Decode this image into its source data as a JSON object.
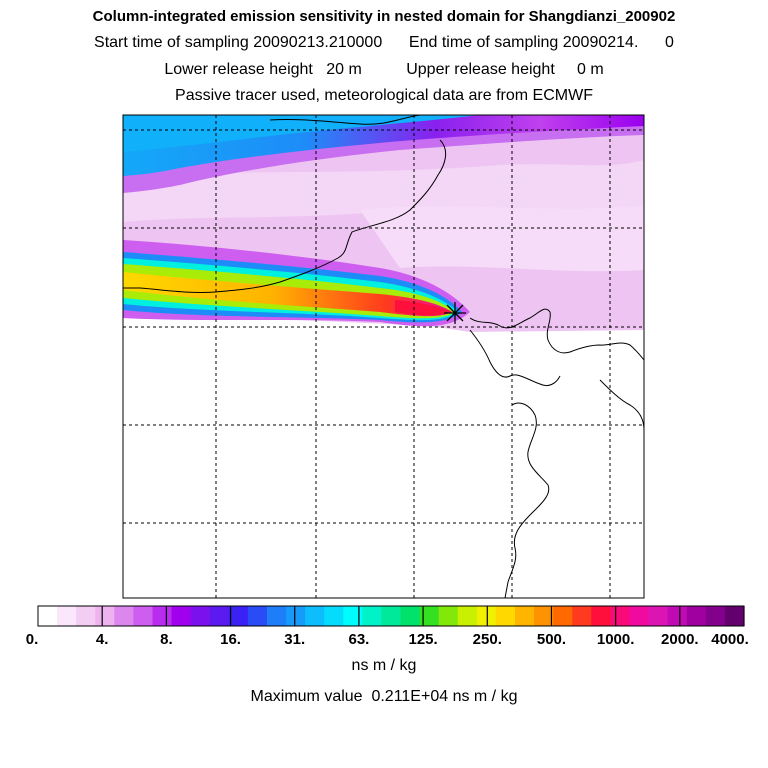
{
  "header": {
    "title": "Column-integrated emission sensitivity in nested domain for Shangdianzi_200902",
    "sampling_line": "Start time of sampling 20090213.210000      End time of sampling 20090214.      0",
    "release_line": "Lower release height   20 m          Upper release height     0 m",
    "tracer_line": "Passive tracer used, meteorological data are from ECMWF"
  },
  "map": {
    "receptor_marker": "receptor-star",
    "grid": "dashed"
  },
  "legend": {
    "colors": [
      "#ffffff",
      "#fbe7fb",
      "#f4cdf4",
      "#eeb3ee",
      "#dc86ee",
      "#cd5eef",
      "#b82bef",
      "#a000ee",
      "#7b12ee",
      "#5a1af0",
      "#3a22f5",
      "#2a4cf7",
      "#1e7df9",
      "#149bfb",
      "#0dbdfc",
      "#05dcfd",
      "#00fcfc",
      "#00f2c8",
      "#00e89a",
      "#00e26a",
      "#35e020",
      "#82e80a",
      "#c8f000",
      "#f0f000",
      "#ffd800",
      "#ffb400",
      "#ff9200",
      "#ff6a00",
      "#ff3a1e",
      "#ff0f3c",
      "#fa0a78",
      "#f00aa0",
      "#dc14b4",
      "#c00ab4",
      "#a0009f",
      "#82008c",
      "#64006e"
    ],
    "tick_labels": [
      "0.",
      "4.",
      "8.",
      "16.",
      "31.",
      "63.",
      "125.",
      "250.",
      "500.",
      "1000.",
      "2000.",
      "4000."
    ],
    "units": "ns m / kg"
  },
  "footer": {
    "max_value_line": "Maximum value  0.211E+04 ns m / kg"
  }
}
